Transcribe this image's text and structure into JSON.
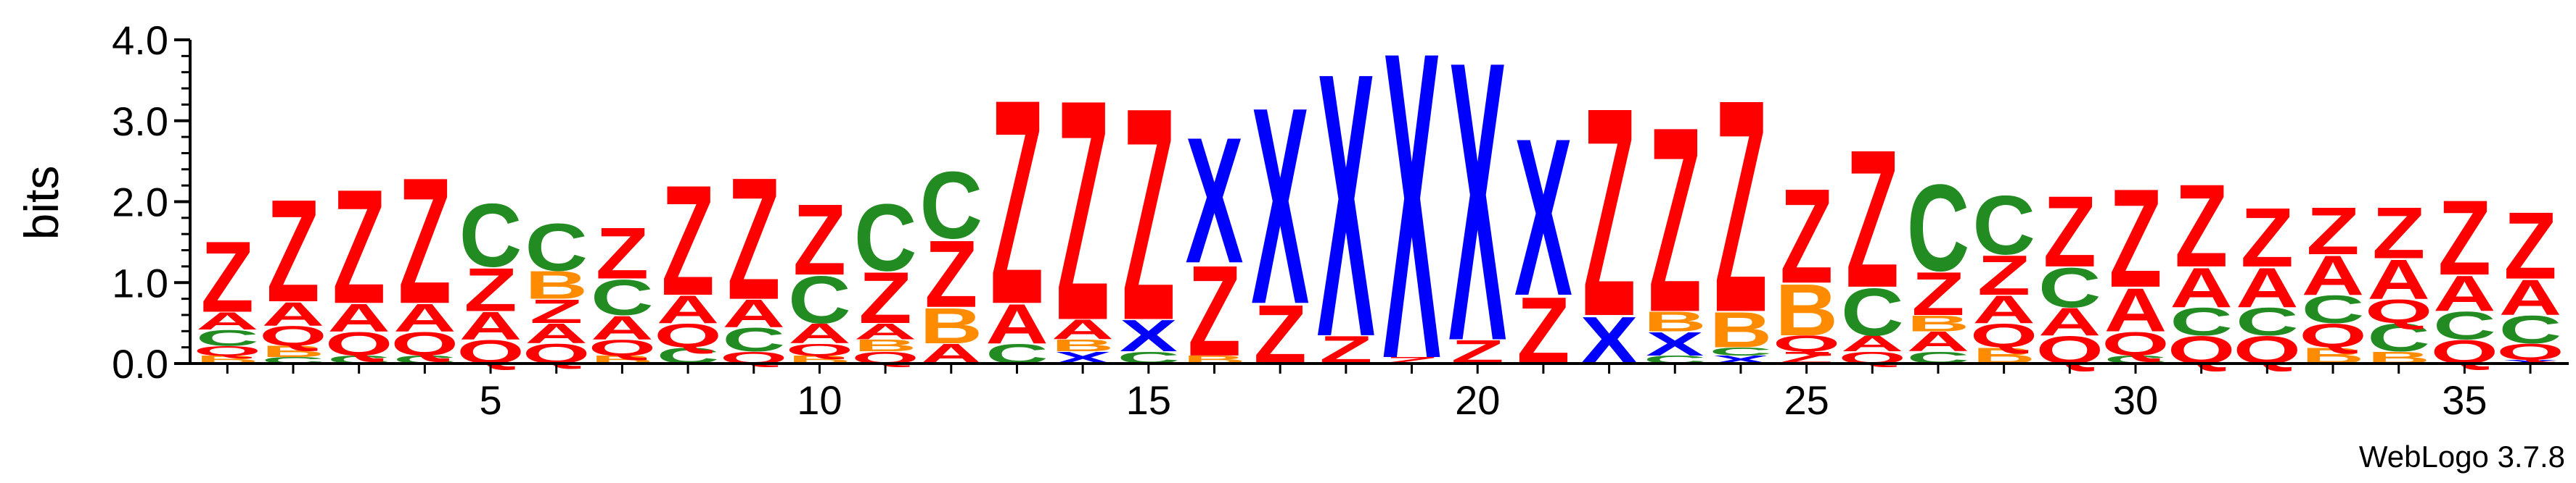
{
  "chart_data": {
    "type": "sequence-logo",
    "ylabel": "bits",
    "ylim": [
      0,
      4.0
    ],
    "yticks": [
      "0.0",
      "1.0",
      "2.0",
      "3.0",
      "4.0"
    ],
    "xticks": [
      5,
      10,
      15,
      20,
      25,
      30,
      35
    ],
    "x_range": [
      1,
      36
    ],
    "colors": {
      "Z": "#ff0000",
      "A": "#ff0000",
      "Q": "#ff0000",
      "C": "#228b22",
      "B": "#ff8c00",
      "X": "#0000ff"
    },
    "positions": [
      {
        "pos": 1,
        "letters": [
          [
            "B",
            0.1
          ],
          [
            "Q",
            0.12
          ],
          [
            "C",
            0.2
          ],
          [
            "A",
            0.22
          ],
          [
            "Z",
            0.9
          ]
        ]
      },
      {
        "pos": 2,
        "letters": [
          [
            "C",
            0.08
          ],
          [
            "B",
            0.14
          ],
          [
            "Q",
            0.25
          ],
          [
            "A",
            0.3
          ],
          [
            "Z",
            1.3
          ]
        ]
      },
      {
        "pos": 3,
        "letters": [
          [
            "C",
            0.1
          ],
          [
            "Q",
            0.3
          ],
          [
            "A",
            0.35
          ],
          [
            "Z",
            1.45
          ]
        ]
      },
      {
        "pos": 4,
        "letters": [
          [
            "C",
            0.1
          ],
          [
            "Q",
            0.3
          ],
          [
            "A",
            0.35
          ],
          [
            "Z",
            1.6
          ]
        ]
      },
      {
        "pos": 5,
        "letters": [
          [
            "Q",
            0.3
          ],
          [
            "A",
            0.35
          ],
          [
            "Z",
            0.55
          ],
          [
            "C",
            0.8
          ]
        ]
      },
      {
        "pos": 6,
        "letters": [
          [
            "Q",
            0.25
          ],
          [
            "A",
            0.25
          ],
          [
            "Z",
            0.3
          ],
          [
            "B",
            0.35
          ],
          [
            "C",
            0.6
          ]
        ]
      },
      {
        "pos": 7,
        "letters": [
          [
            "B",
            0.1
          ],
          [
            "Q",
            0.2
          ],
          [
            "A",
            0.3
          ],
          [
            "C",
            0.45
          ],
          [
            "Z",
            0.65
          ]
        ]
      },
      {
        "pos": 8,
        "letters": [
          [
            "C",
            0.2
          ],
          [
            "Q",
            0.3
          ],
          [
            "A",
            0.35
          ],
          [
            "Z",
            1.4
          ]
        ]
      },
      {
        "pos": 9,
        "letters": [
          [
            "Q",
            0.15
          ],
          [
            "C",
            0.3
          ],
          [
            "A",
            0.35
          ],
          [
            "Z",
            1.55
          ]
        ]
      },
      {
        "pos": 10,
        "letters": [
          [
            "B",
            0.1
          ],
          [
            "Q",
            0.15
          ],
          [
            "A",
            0.25
          ],
          [
            "C",
            0.6
          ],
          [
            "Z",
            0.9
          ]
        ]
      },
      {
        "pos": 11,
        "letters": [
          [
            "Q",
            0.15
          ],
          [
            "B",
            0.15
          ],
          [
            "A",
            0.2
          ],
          [
            "Z",
            0.65
          ],
          [
            "C",
            0.85
          ]
        ]
      },
      {
        "pos": 12,
        "letters": [
          [
            "A",
            0.25
          ],
          [
            "B",
            0.45
          ],
          [
            "Z",
            0.85
          ],
          [
            "C",
            0.85
          ]
        ]
      },
      {
        "pos": 13,
        "letters": [
          [
            "C",
            0.25
          ],
          [
            "A",
            0.5
          ],
          [
            "Z",
            2.6
          ]
        ]
      },
      {
        "pos": 14,
        "letters": [
          [
            "X",
            0.15
          ],
          [
            "B",
            0.15
          ],
          [
            "A",
            0.25
          ],
          [
            "Z",
            2.8
          ]
        ]
      },
      {
        "pos": 15,
        "letters": [
          [
            "C",
            0.15
          ],
          [
            "X",
            0.4
          ],
          [
            "Z",
            2.7
          ]
        ]
      },
      {
        "pos": 16,
        "letters": [
          [
            "B",
            0.1
          ],
          [
            "Z",
            1.15
          ],
          [
            "X",
            1.6
          ]
        ]
      },
      {
        "pos": 17,
        "letters": [
          [
            "Z",
            0.75
          ],
          [
            "X",
            2.5
          ]
        ]
      },
      {
        "pos": 18,
        "letters": [
          [
            "Z",
            0.35
          ],
          [
            "X",
            3.35
          ]
        ]
      },
      {
        "pos": 19,
        "letters": [
          [
            "Z",
            0.08
          ],
          [
            "X",
            3.9
          ]
        ]
      },
      {
        "pos": 20,
        "letters": [
          [
            "Z",
            0.3
          ],
          [
            "X",
            3.55
          ]
        ]
      },
      {
        "pos": 21,
        "letters": [
          [
            "Z",
            0.85
          ],
          [
            "X",
            2.0
          ]
        ]
      },
      {
        "pos": 22,
        "letters": [
          [
            "X",
            0.6
          ],
          [
            "Z",
            2.65
          ]
        ]
      },
      {
        "pos": 23,
        "letters": [
          [
            "C",
            0.1
          ],
          [
            "X",
            0.3
          ],
          [
            "B",
            0.25
          ],
          [
            "Z",
            2.35
          ]
        ]
      },
      {
        "pos": 24,
        "letters": [
          [
            "X",
            0.1
          ],
          [
            "C",
            0.1
          ],
          [
            "B",
            0.45
          ],
          [
            "Z",
            2.7
          ]
        ]
      },
      {
        "pos": 25,
        "letters": [
          [
            "Z",
            0.15
          ],
          [
            "Q",
            0.2
          ],
          [
            "B",
            0.65
          ],
          [
            "Z",
            1.2
          ]
        ]
      },
      {
        "pos": 26,
        "letters": [
          [
            "Q",
            0.15
          ],
          [
            "A",
            0.2
          ],
          [
            "C",
            0.6
          ],
          [
            "Z",
            1.75
          ]
        ]
      },
      {
        "pos": 27,
        "letters": [
          [
            "C",
            0.15
          ],
          [
            "A",
            0.25
          ],
          [
            "B",
            0.2
          ],
          [
            "Z",
            0.55
          ],
          [
            "C",
            1.1
          ]
        ]
      },
      {
        "pos": 28,
        "letters": [
          [
            "B",
            0.2
          ],
          [
            "Q",
            0.3
          ],
          [
            "A",
            0.35
          ],
          [
            "Z",
            0.5
          ],
          [
            "C",
            0.75
          ]
        ]
      },
      {
        "pos": 29,
        "letters": [
          [
            "Q",
            0.35
          ],
          [
            "A",
            0.35
          ],
          [
            "C",
            0.5
          ],
          [
            "Z",
            0.9
          ]
        ]
      },
      {
        "pos": 30,
        "letters": [
          [
            "C",
            0.1
          ],
          [
            "Q",
            0.3
          ],
          [
            "A",
            0.55
          ],
          [
            "Z",
            1.25
          ]
        ]
      },
      {
        "pos": 31,
        "letters": [
          [
            "Q",
            0.35
          ],
          [
            "C",
            0.35
          ],
          [
            "A",
            0.5
          ],
          [
            "Z",
            1.05
          ]
        ]
      },
      {
        "pos": 32,
        "letters": [
          [
            "Q",
            0.35
          ],
          [
            "C",
            0.35
          ],
          [
            "A",
            0.5
          ],
          [
            "Z",
            0.75
          ]
        ]
      },
      {
        "pos": 33,
        "letters": [
          [
            "B",
            0.2
          ],
          [
            "Q",
            0.3
          ],
          [
            "C",
            0.35
          ],
          [
            "A",
            0.5
          ],
          [
            "Z",
            0.6
          ]
        ]
      },
      {
        "pos": 34,
        "letters": [
          [
            "B",
            0.15
          ],
          [
            "C",
            0.35
          ],
          [
            "Q",
            0.3
          ],
          [
            "A",
            0.5
          ],
          [
            "Z",
            0.65
          ]
        ]
      },
      {
        "pos": 35,
        "letters": [
          [
            "Q",
            0.3
          ],
          [
            "C",
            0.35
          ],
          [
            "A",
            0.45
          ],
          [
            "Z",
            0.95
          ]
        ]
      },
      {
        "pos": 36,
        "letters": [
          [
            "X",
            0.05
          ],
          [
            "Q",
            0.2
          ],
          [
            "C",
            0.35
          ],
          [
            "A",
            0.45
          ],
          [
            "Z",
            0.85
          ]
        ]
      }
    ]
  },
  "footer": {
    "version_label": "WebLogo 3.7.8"
  }
}
